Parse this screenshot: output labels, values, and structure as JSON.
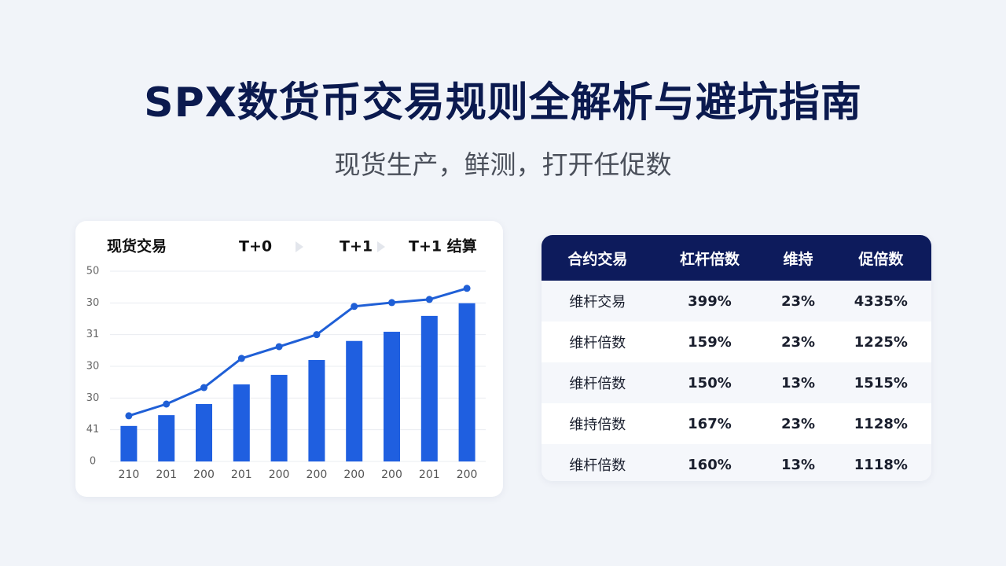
{
  "header": {
    "title": "SPX数货币交易规则全解析与避坑指南",
    "subtitle": "现货生产，鲜测，打开任促数"
  },
  "chart_data": {
    "type": "bar",
    "header_labels": [
      "现货交易",
      "T+0",
      "T+1",
      "T+1 结算"
    ],
    "categories": [
      "210",
      "201",
      "200",
      "201",
      "200",
      "200",
      "200",
      "200",
      "201",
      "200"
    ],
    "series": [
      {
        "type": "bar",
        "color": "#1f5fe0",
        "values": [
          11.2,
          14.6,
          18.1,
          24.3,
          27.3,
          32.0,
          38.0,
          40.9,
          45.9,
          49.9
        ]
      },
      {
        "type": "line",
        "color": "#1f5fd6",
        "values": [
          14.4,
          18.1,
          23.3,
          32.5,
          36.2,
          40.0,
          48.9,
          50.1,
          51.1,
          54.6
        ]
      }
    ],
    "ylim": [
      0,
      60
    ],
    "yticks": [
      0,
      {
        "value": 10,
        "label": "41"
      },
      {
        "value": 20,
        "label": "30"
      },
      {
        "value": 30,
        "label": "30"
      },
      {
        "value": 40,
        "label": "31"
      },
      {
        "value": 50,
        "label": "30"
      },
      {
        "value": 60,
        "label": "50"
      }
    ],
    "grid": true
  },
  "table": {
    "columns": [
      "合约交易",
      "杠杆倍数",
      "维持",
      "促倍数"
    ],
    "rows": [
      [
        "维杆交易",
        "399%",
        "23%",
        "4335%"
      ],
      [
        "维杆倍数",
        "159%",
        "23%",
        "1225%"
      ],
      [
        "维杆倍数",
        "150%",
        "13%",
        "1515%"
      ],
      [
        "维持倍数",
        "167%",
        "23%",
        "1128%"
      ],
      [
        "维杆倍数",
        "160%",
        "13%",
        "1118%"
      ]
    ]
  }
}
